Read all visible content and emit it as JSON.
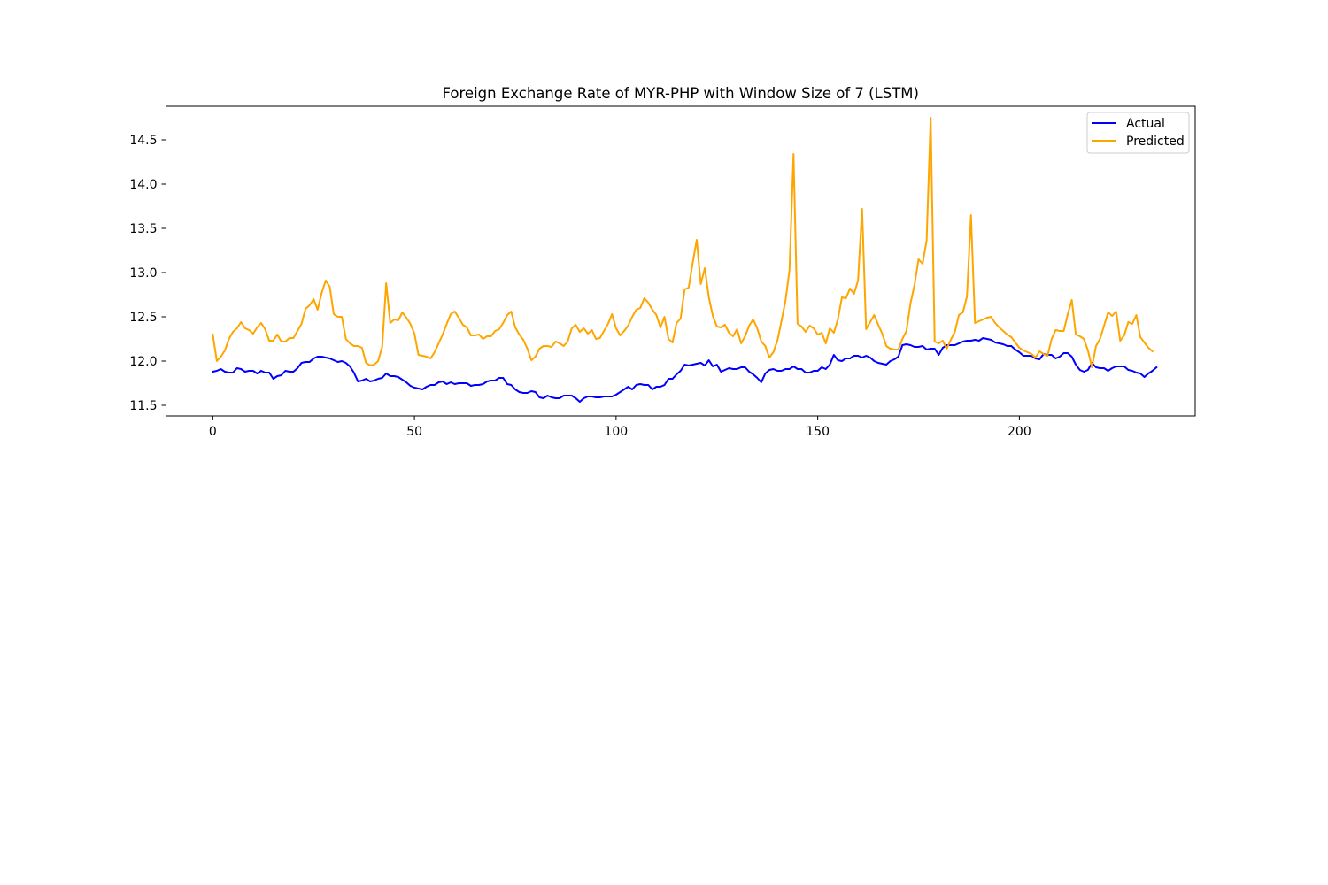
{
  "chart_data": {
    "type": "line",
    "title": "Foreign Exchange Rate of MYR-PHP with Window Size of 7 (LSTM)",
    "xlabel": "",
    "ylabel": "",
    "xlim": [
      -11.6,
      243.6
    ],
    "ylim": [
      11.38,
      14.88
    ],
    "xticks": [
      0,
      50,
      100,
      150,
      200
    ],
    "yticks": [
      11.5,
      12.0,
      12.5,
      13.0,
      13.5,
      14.0,
      14.5
    ],
    "xtick_labels": [
      "0",
      "50",
      "100",
      "150",
      "200"
    ],
    "ytick_labels": [
      "11.5",
      "12.0",
      "12.5",
      "13.0",
      "13.5",
      "14.0",
      "14.5"
    ],
    "grid": false,
    "legend_position": "top-right",
    "series": [
      {
        "name": "Actual",
        "color": "#0000ff",
        "values": [
          11.88,
          11.89,
          11.91,
          11.88,
          11.87,
          11.87,
          11.92,
          11.91,
          11.88,
          11.89,
          11.89,
          11.86,
          11.89,
          11.87,
          11.87,
          11.8,
          11.83,
          11.84,
          11.89,
          11.88,
          11.88,
          11.92,
          11.98,
          11.99,
          11.99,
          12.03,
          12.05,
          12.05,
          12.04,
          12.03,
          12.01,
          11.99,
          12.0,
          11.98,
          11.94,
          11.87,
          11.77,
          11.78,
          11.8,
          11.77,
          11.78,
          11.8,
          11.81,
          11.86,
          11.83,
          11.83,
          11.82,
          11.79,
          11.76,
          11.72,
          11.7,
          11.69,
          11.68,
          11.71,
          11.73,
          11.73,
          11.76,
          11.77,
          11.74,
          11.76,
          11.74,
          11.75,
          11.75,
          11.75,
          11.72,
          11.73,
          11.73,
          11.74,
          11.77,
          11.78,
          11.78,
          11.81,
          11.81,
          11.74,
          11.73,
          11.68,
          11.65,
          11.64,
          11.64,
          11.66,
          11.65,
          11.59,
          11.58,
          11.61,
          11.59,
          11.58,
          11.58,
          11.61,
          11.61,
          11.61,
          11.58,
          11.54,
          11.58,
          11.6,
          11.6,
          11.59,
          11.59,
          11.6,
          11.6,
          11.6,
          11.62,
          11.65,
          11.68,
          11.71,
          11.68,
          11.73,
          11.74,
          11.73,
          11.73,
          11.68,
          11.71,
          11.71,
          11.73,
          11.8,
          11.8,
          11.85,
          11.89,
          11.96,
          11.95,
          11.96,
          11.97,
          11.98,
          11.95,
          12.01,
          11.94,
          11.96,
          11.88,
          11.9,
          11.92,
          11.91,
          11.91,
          11.93,
          11.93,
          11.88,
          11.85,
          11.81,
          11.76,
          11.86,
          11.9,
          11.91,
          11.89,
          11.89,
          11.91,
          11.91,
          11.94,
          11.91,
          11.91,
          11.87,
          11.87,
          11.89,
          11.89,
          11.93,
          11.91,
          11.96,
          12.07,
          12.01,
          12.0,
          12.03,
          12.03,
          12.06,
          12.06,
          12.04,
          12.06,
          12.04,
          12.0,
          11.98,
          11.97,
          11.96,
          12.0,
          12.02,
          12.05,
          12.18,
          12.19,
          12.18,
          12.16,
          12.16,
          12.17,
          12.13,
          12.14,
          12.14,
          12.07,
          12.15,
          12.18,
          12.18,
          12.18,
          12.2,
          12.22,
          12.23,
          12.23,
          12.24,
          12.23,
          12.26,
          12.25,
          12.24,
          12.21,
          12.2,
          12.19,
          12.17,
          12.17,
          12.13,
          12.1,
          12.06,
          12.06,
          12.06,
          12.03,
          12.02,
          12.08,
          12.07,
          12.07,
          12.03,
          12.05,
          12.09,
          12.09,
          12.05,
          11.96,
          11.9,
          11.88,
          11.9,
          11.98,
          11.93,
          11.92,
          11.92,
          11.89,
          11.92,
          11.94,
          11.94,
          11.94,
          11.9,
          11.89,
          11.87,
          11.86,
          11.82,
          11.86,
          11.89,
          11.93
        ]
      },
      {
        "name": "Predicted",
        "color": "#ffa500",
        "values": [
          12.3,
          12.0,
          12.05,
          12.12,
          12.25,
          12.33,
          12.37,
          12.44,
          12.37,
          12.35,
          12.31,
          12.38,
          12.43,
          12.36,
          12.23,
          12.23,
          12.3,
          12.22,
          12.22,
          12.26,
          12.26,
          12.34,
          12.42,
          12.59,
          12.63,
          12.7,
          12.58,
          12.77,
          12.91,
          12.84,
          12.53,
          12.5,
          12.5,
          12.25,
          12.2,
          12.17,
          12.17,
          12.15,
          11.98,
          11.95,
          11.96,
          12.0,
          12.16,
          12.88,
          12.43,
          12.47,
          12.46,
          12.55,
          12.49,
          12.42,
          12.31,
          12.07,
          12.06,
          12.05,
          12.03,
          12.1,
          12.2,
          12.3,
          12.42,
          12.53,
          12.56,
          12.49,
          12.41,
          12.38,
          12.29,
          12.29,
          12.3,
          12.25,
          12.28,
          12.28,
          12.34,
          12.36,
          12.43,
          12.52,
          12.56,
          12.38,
          12.3,
          12.24,
          12.14,
          12.01,
          12.05,
          12.14,
          12.17,
          12.17,
          12.16,
          12.22,
          12.2,
          12.17,
          12.22,
          12.37,
          12.41,
          12.33,
          12.37,
          12.31,
          12.35,
          12.25,
          12.26,
          12.34,
          12.42,
          12.53,
          12.37,
          12.29,
          12.34,
          12.4,
          12.5,
          12.58,
          12.6,
          12.71,
          12.66,
          12.58,
          12.52,
          12.38,
          12.5,
          12.25,
          12.21,
          12.43,
          12.48,
          12.81,
          12.83,
          13.11,
          13.37,
          12.87,
          13.05,
          12.72,
          12.51,
          12.39,
          12.38,
          12.41,
          12.32,
          12.28,
          12.36,
          12.2,
          12.28,
          12.4,
          12.47,
          12.37,
          12.22,
          12.17,
          12.04,
          12.1,
          12.23,
          12.45,
          12.68,
          13.03,
          14.34,
          12.42,
          12.39,
          12.33,
          12.4,
          12.37,
          12.3,
          12.32,
          12.2,
          12.37,
          12.32,
          12.47,
          12.72,
          12.71,
          12.82,
          12.76,
          12.91,
          13.72,
          12.36,
          12.44,
          12.52,
          12.41,
          12.31,
          12.17,
          12.14,
          12.13,
          12.13,
          12.25,
          12.34,
          12.65,
          12.86,
          13.15,
          13.1,
          13.36,
          14.75,
          12.22,
          12.2,
          12.23,
          12.14,
          12.24,
          12.33,
          12.52,
          12.55,
          12.73,
          13.65,
          12.43,
          12.45,
          12.47,
          12.49,
          12.5,
          12.43,
          12.38,
          12.34,
          12.3,
          12.27,
          12.21,
          12.15,
          12.12,
          12.1,
          12.08,
          12.04,
          12.11,
          12.08,
          12.06,
          12.25,
          12.35,
          12.34,
          12.34,
          12.53,
          12.69,
          12.3,
          12.28,
          12.25,
          12.12,
          11.93,
          12.17,
          12.25,
          12.4,
          12.55,
          12.51,
          12.56,
          12.23,
          12.29,
          12.44,
          12.42,
          12.52,
          12.27,
          12.21,
          12.15,
          12.11
        ]
      }
    ]
  }
}
